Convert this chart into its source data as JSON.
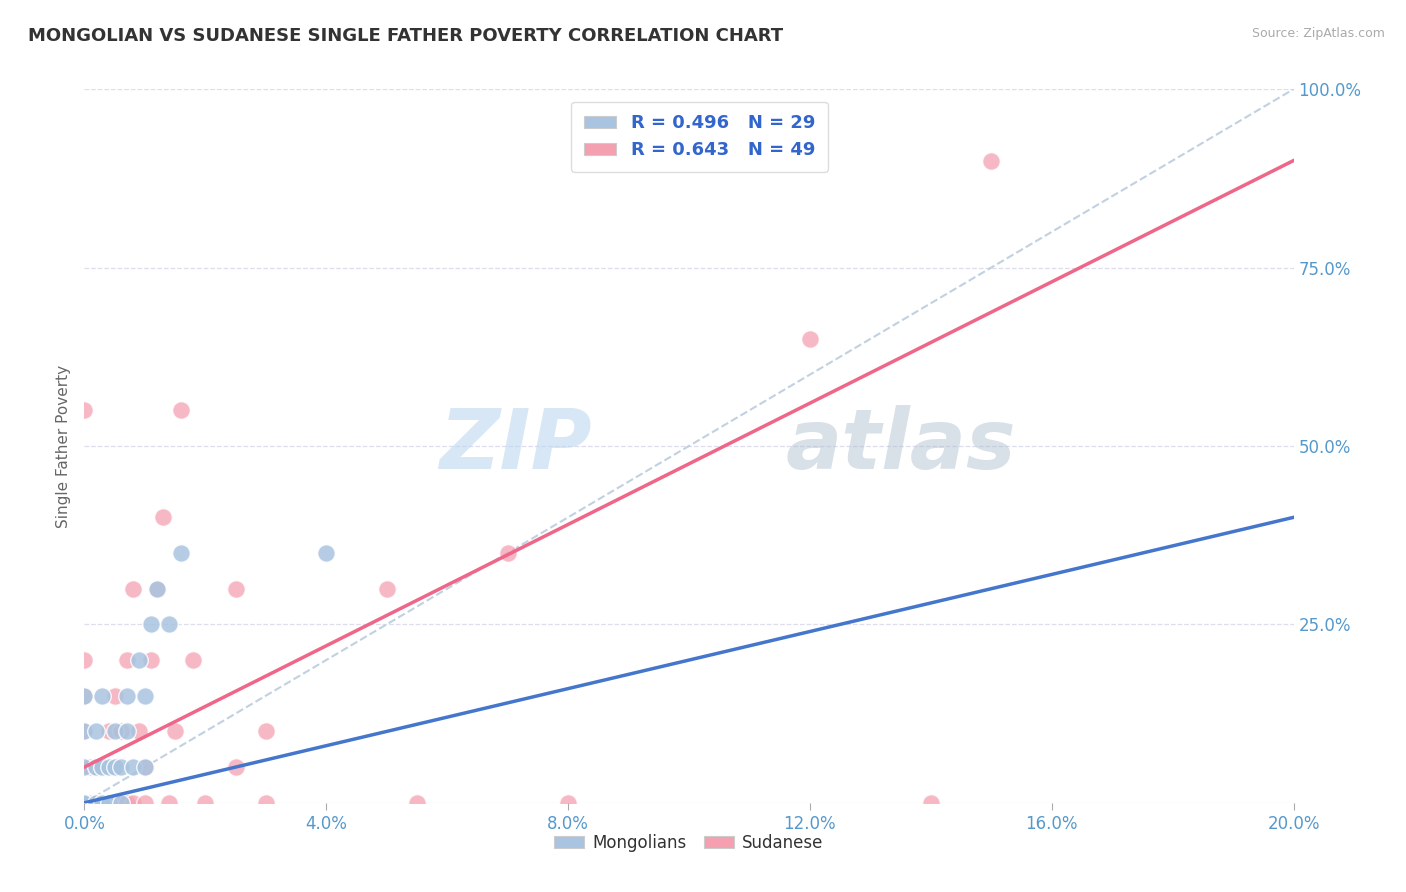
{
  "title": "MONGOLIAN VS SUDANESE SINGLE FATHER POVERTY CORRELATION CHART",
  "source": "Source: ZipAtlas.com",
  "ylabel": "Single Father Poverty",
  "xlim": [
    0.0,
    0.2
  ],
  "ylim": [
    0.0,
    1.0
  ],
  "mongolian_R": 0.496,
  "mongolian_N": 29,
  "sudanese_R": 0.643,
  "sudanese_N": 49,
  "mongolian_color": "#a8c4e0",
  "sudanese_color": "#f4a0b0",
  "mongolian_line_color": "#4477cc",
  "sudanese_line_color": "#ee6688",
  "ref_line_color": "#bbccdd",
  "title_color": "#333333",
  "axis_label_color": "#5599cc",
  "watermark_color1": "#c8dff0",
  "watermark_color2": "#aabbcc",
  "legend_text_color": "#3366cc",
  "background_color": "#ffffff",
  "mongolian_x": [
    0.0,
    0.0,
    0.0,
    0.0,
    0.0,
    0.0,
    0.002,
    0.002,
    0.002,
    0.003,
    0.003,
    0.003,
    0.004,
    0.004,
    0.005,
    0.005,
    0.006,
    0.006,
    0.007,
    0.007,
    0.008,
    0.009,
    0.01,
    0.01,
    0.011,
    0.012,
    0.014,
    0.016,
    0.04
  ],
  "mongolian_y": [
    0.0,
    0.0,
    0.0,
    0.05,
    0.1,
    0.15,
    0.0,
    0.05,
    0.1,
    0.0,
    0.05,
    0.15,
    0.0,
    0.05,
    0.05,
    0.1,
    0.0,
    0.05,
    0.1,
    0.15,
    0.05,
    0.2,
    0.05,
    0.15,
    0.25,
    0.3,
    0.25,
    0.35,
    0.35
  ],
  "sudanese_x": [
    0.0,
    0.0,
    0.0,
    0.0,
    0.0,
    0.0,
    0.0,
    0.0,
    0.0,
    0.0,
    0.001,
    0.001,
    0.002,
    0.002,
    0.003,
    0.003,
    0.004,
    0.004,
    0.005,
    0.005,
    0.005,
    0.006,
    0.006,
    0.007,
    0.007,
    0.008,
    0.008,
    0.009,
    0.01,
    0.01,
    0.011,
    0.012,
    0.013,
    0.014,
    0.015,
    0.016,
    0.018,
    0.02,
    0.025,
    0.025,
    0.03,
    0.03,
    0.05,
    0.055,
    0.07,
    0.08,
    0.12,
    0.14,
    0.15
  ],
  "sudanese_y": [
    0.0,
    0.0,
    0.0,
    0.0,
    0.05,
    0.05,
    0.1,
    0.15,
    0.2,
    0.55,
    0.0,
    0.05,
    0.0,
    0.05,
    0.0,
    0.05,
    0.0,
    0.1,
    0.0,
    0.05,
    0.15,
    0.0,
    0.1,
    0.0,
    0.2,
    0.0,
    0.3,
    0.1,
    0.0,
    0.05,
    0.2,
    0.3,
    0.4,
    0.0,
    0.1,
    0.55,
    0.2,
    0.0,
    0.05,
    0.3,
    0.0,
    0.1,
    0.3,
    0.0,
    0.35,
    0.0,
    0.65,
    0.0,
    0.9
  ],
  "mongolian_line": [
    0.0,
    0.4
  ],
  "sudanese_line": [
    0.05,
    0.9
  ],
  "line_x": [
    0.0,
    0.2
  ]
}
